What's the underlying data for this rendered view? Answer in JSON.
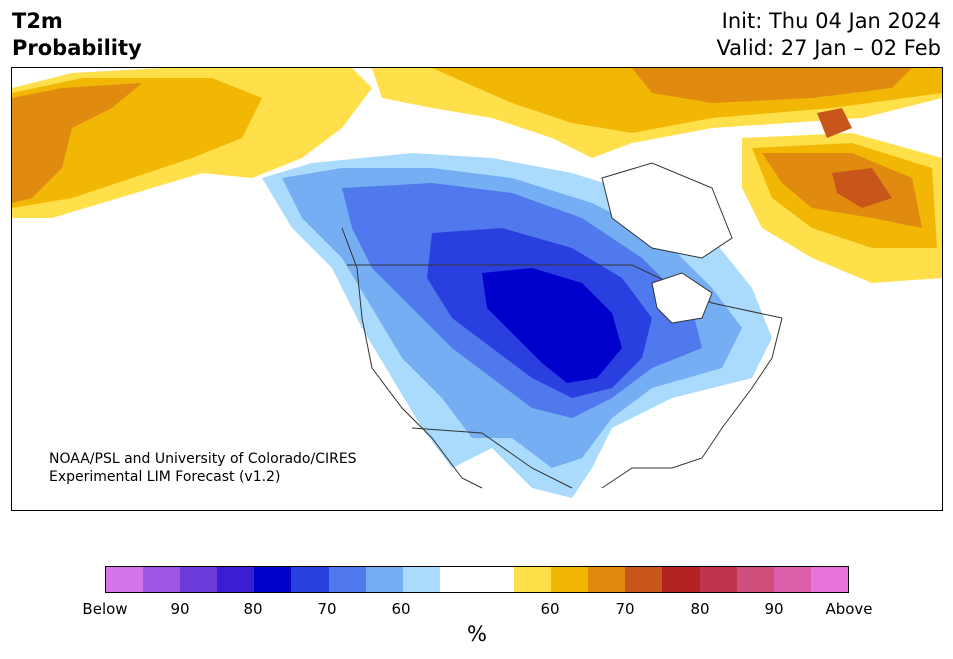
{
  "header": {
    "variable": "T2m",
    "product": "Probability",
    "init": "Init: Thu 04 Jan 2024",
    "valid": "Valid: 27 Jan – 02 Feb"
  },
  "map": {
    "credit_line1": "NOAA/PSL and University of Colorado/CIRES",
    "credit_line2": "Experimental LIM Forecast (v1.2)"
  },
  "colorbar": {
    "colors": [
      "#d473ea",
      "#9d55e3",
      "#6b3ad9",
      "#3b1dd3",
      "#0000cd",
      "#2a3fe0",
      "#4f79ec",
      "#75aef3",
      "#aadbfc",
      "#ffffff",
      "#ffffff",
      "#ffe04a",
      "#f2b705",
      "#e08a10",
      "#c8561a",
      "#b22222",
      "#c0344e",
      "#cf4f7c",
      "#db5ea8",
      "#e674d8"
    ],
    "tick_labels": [
      "Below",
      "90",
      "80",
      "70",
      "60",
      "60",
      "70",
      "80",
      "90",
      "Above"
    ],
    "unit": "%"
  },
  "legend_colors": {
    "below_extreme": "#0000cd",
    "below_strong": "#2a3fe0",
    "below_moderate": "#4f79ec",
    "below_weak": "#75aef3",
    "below_slight": "#aadbfc",
    "above_slight": "#ffe04a",
    "above_weak": "#f2b705",
    "above_moderate": "#e08a10",
    "above_strong": "#c8561a"
  }
}
